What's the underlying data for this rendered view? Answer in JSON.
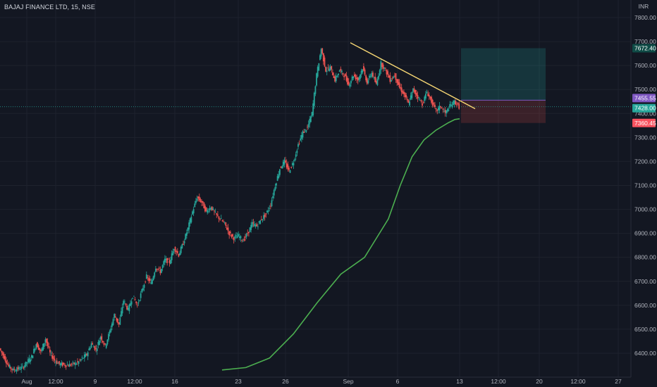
{
  "header": {
    "symbol": "BAJAJ FINANCE LTD",
    "separator1": ", ",
    "interval": "15",
    "separator2": ", ",
    "exchange": "NSE"
  },
  "currency": "INR",
  "colors": {
    "background": "#131722",
    "grid": "#1e222d",
    "axis_text": "#b2b5be",
    "candle_up": "#26a69a",
    "candle_down": "#ef5350",
    "moving_average": "#4caf50",
    "trendline": "#f7d774",
    "target_zone": "#26a69a",
    "stop_zone": "#ef5350",
    "tag_target": "#0f4b46",
    "tag_entry": "#26a69a",
    "tag_upper": "#7e57c2",
    "tag_stop": "#f7525f"
  },
  "chart_data": {
    "type": "candlestick",
    "y_axis": {
      "ticks": [
        6400,
        6500,
        6600,
        6700,
        6800,
        6900,
        7000,
        7100,
        7200,
        7300,
        7400,
        7500,
        7600,
        7700,
        7800
      ],
      "tick_labels": [
        "6400.00",
        "6500.00",
        "6600.00",
        "6700.00",
        "6800.00",
        "6900.00",
        "7000.00",
        "7100.00",
        "7200.00",
        "7300.00",
        "7400.00",
        "7500.00",
        "7600.00",
        "7700.00",
        "7800.00"
      ],
      "range": [
        6330,
        7845
      ]
    },
    "x_axis": {
      "tick_labels": [
        "Aug",
        "12:00",
        "9",
        "12:00",
        "16",
        "23",
        "26",
        "Sep",
        "6",
        "13",
        "12:00",
        "20",
        "12:00",
        "27"
      ]
    },
    "price_tags": [
      {
        "label": "7672.40",
        "value": 7672.4,
        "role": "target"
      },
      {
        "label": "7455.55",
        "value": 7455.55,
        "role": "upper"
      },
      {
        "label": "7428.00",
        "value": 7428.0,
        "role": "entry"
      },
      {
        "label": "7360.45",
        "value": 7360.45,
        "role": "stop"
      }
    ],
    "current_price": 7428.0,
    "position": {
      "entry": 7455.55,
      "target": 7672.4,
      "stop": 7360.45
    },
    "trendline": {
      "from": 7695,
      "to": 7420
    },
    "price_path": [
      [
        0,
        6420
      ],
      [
        2,
        6385
      ],
      [
        4,
        6345
      ],
      [
        6,
        6330
      ],
      [
        10,
        6340
      ],
      [
        14,
        6385
      ],
      [
        16,
        6440
      ],
      [
        18,
        6405
      ],
      [
        20,
        6460
      ],
      [
        22,
        6400
      ],
      [
        24,
        6370
      ],
      [
        26,
        6355
      ],
      [
        30,
        6350
      ],
      [
        34,
        6360
      ],
      [
        38,
        6395
      ],
      [
        40,
        6440
      ],
      [
        42,
        6415
      ],
      [
        44,
        6470
      ],
      [
        46,
        6430
      ],
      [
        48,
        6490
      ],
      [
        50,
        6560
      ],
      [
        52,
        6520
      ],
      [
        54,
        6620
      ],
      [
        56,
        6580
      ],
      [
        58,
        6640
      ],
      [
        60,
        6600
      ],
      [
        62,
        6660
      ],
      [
        64,
        6720
      ],
      [
        66,
        6690
      ],
      [
        68,
        6760
      ],
      [
        70,
        6740
      ],
      [
        72,
        6790
      ],
      [
        74,
        6780
      ],
      [
        76,
        6840
      ],
      [
        78,
        6810
      ],
      [
        80,
        6860
      ],
      [
        82,
        6920
      ],
      [
        84,
        6990
      ],
      [
        86,
        7050
      ],
      [
        88,
        7030
      ],
      [
        90,
        6990
      ],
      [
        92,
        7010
      ],
      [
        94,
        6980
      ],
      [
        96,
        6960
      ],
      [
        98,
        6940
      ],
      [
        100,
        6900
      ],
      [
        102,
        6880
      ],
      [
        104,
        6890
      ],
      [
        106,
        6870
      ],
      [
        108,
        6900
      ],
      [
        110,
        6940
      ],
      [
        112,
        6930
      ],
      [
        114,
        6960
      ],
      [
        116,
        6980
      ],
      [
        118,
        7020
      ],
      [
        120,
        7100
      ],
      [
        122,
        7170
      ],
      [
        124,
        7200
      ],
      [
        126,
        7160
      ],
      [
        128,
        7200
      ],
      [
        130,
        7270
      ],
      [
        132,
        7320
      ],
      [
        134,
        7340
      ],
      [
        136,
        7400
      ],
      [
        138,
        7560
      ],
      [
        140,
        7670
      ],
      [
        142,
        7580
      ],
      [
        144,
        7590
      ],
      [
        146,
        7540
      ],
      [
        148,
        7580
      ],
      [
        150,
        7560
      ],
      [
        152,
        7520
      ],
      [
        154,
        7560
      ],
      [
        156,
        7540
      ],
      [
        158,
        7590
      ],
      [
        160,
        7530
      ],
      [
        162,
        7570
      ],
      [
        164,
        7520
      ],
      [
        166,
        7610
      ],
      [
        168,
        7580
      ],
      [
        170,
        7540
      ],
      [
        172,
        7560
      ],
      [
        174,
        7510
      ],
      [
        176,
        7480
      ],
      [
        178,
        7440
      ],
      [
        180,
        7500
      ],
      [
        182,
        7470
      ],
      [
        184,
        7440
      ],
      [
        186,
        7490
      ],
      [
        188,
        7450
      ],
      [
        190,
        7410
      ],
      [
        192,
        7430
      ],
      [
        194,
        7400
      ],
      [
        196,
        7430
      ],
      [
        198,
        7450
      ],
      [
        200,
        7428
      ]
    ],
    "moving_average": [
      [
        0,
        6330
      ],
      [
        20,
        6340
      ],
      [
        40,
        6380
      ],
      [
        60,
        6480
      ],
      [
        80,
        6610
      ],
      [
        100,
        6730
      ],
      [
        120,
        6800
      ],
      [
        130,
        6880
      ],
      [
        140,
        6960
      ],
      [
        150,
        7100
      ],
      [
        160,
        7220
      ],
      [
        170,
        7290
      ],
      [
        180,
        7330
      ],
      [
        190,
        7360
      ],
      [
        196,
        7375
      ],
      [
        200,
        7378
      ]
    ],
    "legend": "none",
    "grid": true
  }
}
